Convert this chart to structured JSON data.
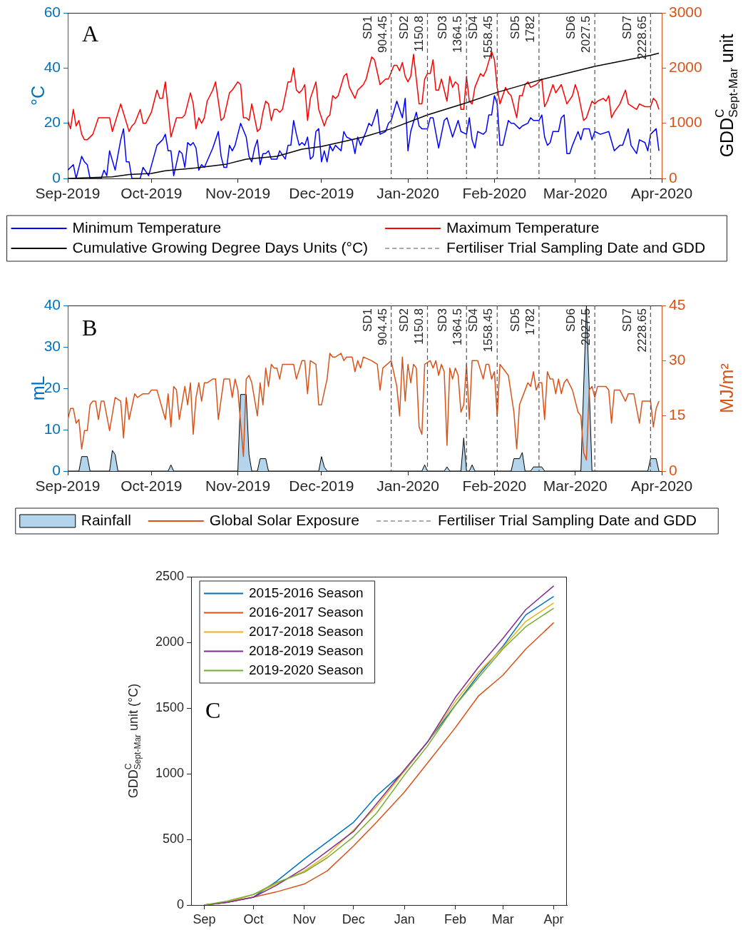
{
  "chart_data": [
    {
      "type": "line",
      "title": "A",
      "ylabel": "°C",
      "y2label": "GDD$^{C}$$_{Sept-Mar}$ unit",
      "xlim": [
        "2019-09-01",
        "2020-04-01"
      ],
      "xticks": [
        {
          "value": "2019-09-01",
          "label": "Sep-2019"
        },
        {
          "value": "2019-10-01",
          "label": "Oct-2019"
        },
        {
          "value": "2019-11-01",
          "label": "Nov-2019"
        },
        {
          "value": "2019-12-01",
          "label": "Dec-2019"
        },
        {
          "value": "2020-01-01",
          "label": "Jan-2020"
        },
        {
          "value": "2020-02-01",
          "label": "Feb-2020"
        },
        {
          "value": "2020-03-01",
          "label": "Mar-2020"
        },
        {
          "value": "2020-04-01",
          "label": "Apr-2020"
        }
      ],
      "ylim": [
        0,
        60
      ],
      "yticks": [
        0,
        20,
        40,
        60
      ],
      "y2lim": [
        0,
        3000
      ],
      "y2ticks": [
        0,
        1000,
        2000,
        3000
      ],
      "legend": "bottom",
      "marker": "none",
      "series": [
        {
          "name": "Minimum Temperature",
          "color": "#0000ff",
          "x": [
            "2019-09-01",
            "2019-09-03",
            "2019-09-04",
            "2019-09-06",
            "2019-09-07",
            "2019-09-08",
            "2019-09-09",
            "2019-09-13",
            "2019-09-14",
            "2019-09-15",
            "2019-09-16",
            "2019-09-18",
            "2019-09-20",
            "2019-09-21",
            "2019-09-22",
            "2019-09-23",
            "2019-09-24",
            "2019-09-27",
            "2019-09-28",
            "2019-09-30",
            "2019-10-03",
            "2019-10-05",
            "2019-10-06",
            "2019-10-07",
            "2019-10-08",
            "2019-10-09",
            "2019-10-11",
            "2019-10-12",
            "2019-10-13",
            "2019-10-14",
            "2019-10-15",
            "2019-10-16",
            "2019-10-17",
            "2019-10-18",
            "2019-10-19",
            "2019-10-20",
            "2019-10-23",
            "2019-10-25",
            "2019-10-26",
            "2019-10-27",
            "2019-10-28",
            "2019-10-29",
            "2019-10-30",
            "2019-10-31",
            "2019-11-02",
            "2019-11-04",
            "2019-11-05",
            "2019-11-06",
            "2019-11-07",
            "2019-11-08",
            "2019-11-09",
            "2019-11-10",
            "2019-11-11",
            "2019-11-12",
            "2019-11-13",
            "2019-11-15",
            "2019-11-16",
            "2019-11-18",
            "2019-11-19",
            "2019-11-20",
            "2019-11-21",
            "2019-11-22",
            "2019-11-23",
            "2019-11-24",
            "2019-11-25",
            "2019-11-26",
            "2019-11-27",
            "2019-11-28",
            "2019-11-29",
            "2019-11-30",
            "2019-12-01",
            "2019-12-02",
            "2019-12-03",
            "2019-12-04",
            "2019-12-05",
            "2019-12-06",
            "2019-12-08",
            "2019-12-09",
            "2019-12-10",
            "2019-12-12",
            "2019-12-13",
            "2019-12-14",
            "2019-12-15",
            "2019-12-17",
            "2019-12-18",
            "2019-12-19",
            "2019-12-21",
            "2019-12-22",
            "2019-12-24",
            "2019-12-25",
            "2019-12-26",
            "2019-12-28",
            "2019-12-30",
            "2019-12-31",
            "2020-01-01",
            "2020-01-02",
            "2020-01-04",
            "2020-01-05",
            "2020-01-06",
            "2020-01-08",
            "2020-01-09",
            "2020-01-10",
            "2020-01-12",
            "2020-01-14",
            "2020-01-15",
            "2020-01-17",
            "2020-01-19",
            "2020-01-20",
            "2020-01-22",
            "2020-01-23",
            "2020-01-24",
            "2020-01-25",
            "2020-01-26",
            "2020-01-28",
            "2020-01-29",
            "2020-01-30",
            "2020-01-31",
            "2020-02-01",
            "2020-02-02",
            "2020-02-03",
            "2020-02-04",
            "2020-02-06",
            "2020-02-07",
            "2020-02-08",
            "2020-02-10",
            "2020-02-11",
            "2020-02-13",
            "2020-02-14",
            "2020-02-15",
            "2020-02-17",
            "2020-02-18",
            "2020-02-19",
            "2020-02-20",
            "2020-02-21",
            "2020-02-22",
            "2020-02-24",
            "2020-02-25",
            "2020-02-26",
            "2020-02-27",
            "2020-02-28",
            "2020-02-29",
            "2020-03-02",
            "2020-03-03",
            "2020-03-04",
            "2020-03-06",
            "2020-03-07",
            "2020-03-08",
            "2020-03-10",
            "2020-03-13",
            "2020-03-15",
            "2020-03-17",
            "2020-03-18",
            "2020-03-20",
            "2020-03-21",
            "2020-03-23",
            "2020-03-24",
            "2020-03-26",
            "2020-03-27",
            "2020-03-28",
            "2020-03-30",
            "2020-03-31"
          ],
          "values": [
            3,
            5,
            0,
            8,
            6,
            5,
            0,
            0,
            3,
            1,
            10,
            3,
            14,
            18,
            6,
            6,
            0,
            0,
            4,
            1,
            12,
            14,
            16,
            10,
            10,
            1,
            10,
            9,
            4,
            13,
            12,
            13,
            11,
            3,
            5,
            4,
            11,
            17,
            8,
            4,
            4,
            12,
            10,
            12,
            20,
            15,
            8,
            6,
            11,
            14,
            5,
            9,
            9,
            10,
            7,
            7,
            10,
            7,
            12,
            12,
            21,
            16,
            12,
            13,
            12,
            15,
            7,
            8,
            17,
            18,
            6,
            10,
            6,
            12,
            10,
            12,
            10,
            17,
            15,
            14,
            9,
            15,
            12,
            17,
            20,
            19,
            25,
            16,
            17,
            20,
            21,
            28,
            22,
            29,
            10,
            17,
            24,
            19,
            18,
            18,
            22,
            22,
            11,
            21,
            22,
            15,
            21,
            17,
            16,
            22,
            14,
            11,
            17,
            16,
            17,
            23,
            23,
            30,
            27,
            12,
            12,
            21,
            20,
            20,
            18,
            19,
            20,
            22,
            21,
            21,
            23,
            15,
            12,
            13,
            17,
            17,
            22,
            23,
            9,
            9,
            12,
            17,
            14,
            18,
            18,
            14,
            17,
            16,
            17,
            10,
            12,
            12,
            18,
            12,
            9,
            14,
            13,
            10,
            16,
            18,
            10
          ]
        },
        {
          "name": "Maximum Temperature",
          "color": "#ff0000",
          "x": [
            "2019-09-01",
            "2019-09-02",
            "2019-09-03",
            "2019-09-04",
            "2019-09-05",
            "2019-09-06",
            "2019-09-07",
            "2019-09-08",
            "2019-09-10",
            "2019-09-12",
            "2019-09-13",
            "2019-09-15",
            "2019-09-16",
            "2019-09-17",
            "2019-09-20",
            "2019-09-23",
            "2019-09-24",
            "2019-09-25",
            "2019-09-27",
            "2019-09-28",
            "2019-09-29",
            "2019-10-01",
            "2019-10-03",
            "2019-10-04",
            "2019-10-05",
            "2019-10-06",
            "2019-10-08",
            "2019-10-10",
            "2019-10-12",
            "2019-10-13",
            "2019-10-15",
            "2019-10-16",
            "2019-10-17",
            "2019-10-18",
            "2019-10-19",
            "2019-10-20",
            "2019-10-21",
            "2019-10-23",
            "2019-10-24",
            "2019-10-26",
            "2019-10-27",
            "2019-10-29",
            "2019-10-30",
            "2019-11-01",
            "2019-11-02",
            "2019-11-03",
            "2019-11-04",
            "2019-11-05",
            "2019-11-06",
            "2019-11-08",
            "2019-11-09",
            "2019-11-10",
            "2019-11-11",
            "2019-11-12",
            "2019-11-13",
            "2019-11-14",
            "2019-11-15",
            "2019-11-16",
            "2019-11-17",
            "2019-11-19",
            "2019-11-20",
            "2019-11-21",
            "2019-11-22",
            "2019-11-23",
            "2019-11-24",
            "2019-11-25",
            "2019-11-26",
            "2019-11-27",
            "2019-11-29",
            "2019-11-30",
            "2019-12-02",
            "2019-12-03",
            "2019-12-04",
            "2019-12-05",
            "2019-12-06",
            "2019-12-07",
            "2019-12-09",
            "2019-12-10",
            "2019-12-11",
            "2019-12-13",
            "2019-12-14",
            "2019-12-16",
            "2019-12-17",
            "2019-12-19",
            "2019-12-20",
            "2019-12-22",
            "2019-12-24",
            "2019-12-25",
            "2019-12-27",
            "2019-12-28",
            "2019-12-29",
            "2019-12-30",
            "2019-12-31",
            "2020-01-01",
            "2020-01-02",
            "2020-01-03",
            "2020-01-05",
            "2020-01-06",
            "2020-01-07",
            "2020-01-08",
            "2020-01-09",
            "2020-01-10",
            "2020-01-11",
            "2020-01-12",
            "2020-01-13",
            "2020-01-15",
            "2020-01-16",
            "2020-01-17",
            "2020-01-18",
            "2020-01-19",
            "2020-01-20",
            "2020-01-21",
            "2020-01-22",
            "2020-01-23",
            "2020-01-24",
            "2020-01-25",
            "2020-01-27",
            "2020-01-28",
            "2020-01-29",
            "2020-01-31",
            "2020-02-01",
            "2020-02-02",
            "2020-02-03",
            "2020-02-04",
            "2020-02-05",
            "2020-02-06",
            "2020-02-07",
            "2020-02-09",
            "2020-02-10",
            "2020-02-11",
            "2020-02-12",
            "2020-02-13",
            "2020-02-14",
            "2020-02-16",
            "2020-02-18",
            "2020-02-19",
            "2020-02-20",
            "2020-02-22",
            "2020-02-23",
            "2020-02-25",
            "2020-02-27",
            "2020-02-29",
            "2020-03-01",
            "2020-03-02",
            "2020-03-04",
            "2020-03-05",
            "2020-03-07",
            "2020-03-08",
            "2020-03-09",
            "2020-03-11",
            "2020-03-12",
            "2020-03-13",
            "2020-03-14",
            "2020-03-15",
            "2020-03-17",
            "2020-03-19",
            "2020-03-20",
            "2020-03-23",
            "2020-03-24",
            "2020-03-26",
            "2020-03-28",
            "2020-03-29",
            "2020-03-30",
            "2020-03-31"
          ],
          "values": [
            21,
            18,
            25,
            19,
            21,
            16,
            14,
            14,
            16,
            22,
            22,
            22,
            22,
            17,
            27,
            17,
            19,
            20,
            25,
            20,
            20,
            24,
            32,
            29,
            29,
            35,
            15,
            22,
            22,
            23,
            31,
            27,
            18,
            22,
            20,
            22,
            28,
            32,
            35,
            21,
            22,
            31,
            32,
            35,
            34,
            22,
            22,
            21,
            27,
            17,
            18,
            24,
            28,
            27,
            21,
            25,
            25,
            24,
            25,
            35,
            35,
            40,
            32,
            31,
            32,
            34,
            21,
            29,
            35,
            25,
            19,
            22,
            23,
            30,
            29,
            30,
            37,
            38,
            33,
            29,
            32,
            34,
            36,
            44,
            43,
            34,
            36,
            36,
            41,
            41,
            39,
            42,
            37,
            35,
            37,
            45,
            27,
            27,
            36,
            38,
            38,
            43,
            32,
            32,
            36,
            28,
            37,
            33,
            35,
            34,
            25,
            25,
            37,
            28,
            27,
            33,
            38,
            37,
            39,
            46,
            43,
            33,
            27,
            30,
            33,
            31,
            30,
            22,
            30,
            30,
            34,
            35,
            33,
            34,
            36,
            26,
            28,
            34,
            31,
            34,
            27,
            30,
            34,
            31,
            21,
            22,
            28,
            27,
            28,
            29,
            28,
            30,
            22,
            24,
            27,
            32,
            27,
            25,
            27,
            26,
            26,
            29,
            28,
            25
          ]
        },
        {
          "name": "Cumulative Growing Degree Days Units (°C)",
          "color": "#000000",
          "axis": "y2",
          "x": [
            "2019-09-01",
            "2019-09-17",
            "2019-09-23",
            "2019-10-01",
            "2019-10-06",
            "2019-10-17",
            "2019-10-28",
            "2019-11-04",
            "2019-11-15",
            "2019-11-24",
            "2019-12-01",
            "2019-12-09",
            "2019-12-16",
            "2019-12-26",
            "2020-01-08",
            "2020-01-22",
            "2020-02-02",
            "2020-02-17",
            "2020-03-08",
            "2020-03-28",
            "2020-03-31"
          ],
          "values": [
            0,
            30,
            70,
            90,
            140,
            190,
            260,
            350,
            400,
            530,
            580,
            670,
            750,
            900,
            1150,
            1370,
            1560,
            1780,
            2030,
            2230,
            2270
          ]
        }
      ],
      "ref_lines": [
        {
          "axis": "x",
          "value": "2019-12-26",
          "label": "SD1\n904.45",
          "color": "#555555",
          "line_style": "dashed"
        },
        {
          "axis": "x",
          "value": "2020-01-08",
          "label": "SD2\n1150.8",
          "color": "#555555",
          "line_style": "dashed"
        },
        {
          "axis": "x",
          "value": "2020-01-22",
          "label": "SD3\n1364.5",
          "color": "#555555",
          "line_style": "dashed"
        },
        {
          "axis": "x",
          "value": "2020-02-02",
          "label": "SD4\n1558.45",
          "color": "#555555",
          "line_style": "dashed"
        },
        {
          "axis": "x",
          "value": "2020-02-17",
          "label": "SD5\n1782",
          "color": "#555555",
          "line_style": "dashed"
        },
        {
          "axis": "x",
          "value": "2020-03-08",
          "label": "SD6\n2027.5",
          "color": "#555555",
          "line_style": "dashed"
        },
        {
          "axis": "x",
          "value": "2020-03-28",
          "label": "SD7\n2228.65",
          "color": "#555555",
          "line_style": "dashed"
        }
      ],
      "annotations": [
        "Fertiliser Trial Sampling Date and GDD"
      ]
    },
    {
      "type": "line",
      "title": "B",
      "ylabel": "mL",
      "y2label": "MJ/m²",
      "xlim": [
        "2019-09-01",
        "2020-04-01"
      ],
      "xticks": [
        {
          "value": "2019-09-01",
          "label": "Sep-2019"
        },
        {
          "value": "2019-10-01",
          "label": "Oct-2019"
        },
        {
          "value": "2019-11-01",
          "label": "Nov-2019"
        },
        {
          "value": "2019-12-01",
          "label": "Dec-2019"
        },
        {
          "value": "2020-01-01",
          "label": "Jan-2020"
        },
        {
          "value": "2020-02-01",
          "label": "Feb-2020"
        },
        {
          "value": "2020-03-01",
          "label": "Mar-2020"
        },
        {
          "value": "2020-04-01",
          "label": "Apr-2020"
        }
      ],
      "ylim": [
        0,
        40
      ],
      "yticks": [
        0,
        10,
        20,
        30,
        40
      ],
      "y2lim": [
        0,
        45
      ],
      "y2ticks": [
        0,
        15,
        30,
        45
      ],
      "legend": "bottom",
      "marker": "none",
      "series": [
        {
          "name": "Rainfall",
          "type": "area",
          "color": "#b3d4ea",
          "x": [
            "2019-09-01",
            "2019-09-05",
            "2019-09-06",
            "2019-09-08",
            "2019-09-09",
            "2019-09-16",
            "2019-09-17",
            "2019-09-18",
            "2019-09-19",
            "2019-10-07",
            "2019-10-08",
            "2019-10-09",
            "2019-11-01",
            "2019-11-02",
            "2019-11-04",
            "2019-11-05",
            "2019-11-06",
            "2019-11-08",
            "2019-11-09",
            "2019-11-11",
            "2019-11-12",
            "2019-11-30",
            "2019-12-01",
            "2019-12-02",
            "2019-12-03",
            "2020-01-06",
            "2020-01-07",
            "2020-01-08",
            "2020-01-14",
            "2020-01-15",
            "2020-01-16",
            "2020-01-20",
            "2020-01-21",
            "2020-01-22",
            "2020-01-23",
            "2020-01-24",
            "2020-01-25",
            "2020-02-07",
            "2020-02-08",
            "2020-02-10",
            "2020-02-11",
            "2020-02-12",
            "2020-02-14",
            "2020-02-15",
            "2020-02-18",
            "2020-02-19",
            "2020-03-03",
            "2020-03-05",
            "2020-03-07",
            "2020-03-27",
            "2020-03-28",
            "2020-03-30",
            "2020-03-31"
          ],
          "values": [
            0,
            0,
            3.5,
            3.5,
            0,
            0,
            5,
            4,
            0,
            0,
            1.5,
            0,
            0,
            18.5,
            18.5,
            4,
            0,
            0,
            3,
            3,
            0,
            0,
            3.5,
            1,
            0,
            0,
            1.5,
            0,
            0,
            1,
            0,
            0,
            8,
            0,
            0,
            1.5,
            0,
            0,
            3,
            3,
            4.5,
            0,
            0,
            1,
            1,
            0,
            0,
            40,
            0,
            0,
            3,
            3,
            0
          ]
        },
        {
          "name": "Global Solar Exposure",
          "color": "#d95319",
          "axis": "y2",
          "x": [
            "2019-09-01",
            "2019-09-02",
            "2019-09-03",
            "2019-09-04",
            "2019-09-05",
            "2019-09-06",
            "2019-09-07",
            "2019-09-08",
            "2019-09-09",
            "2019-09-10",
            "2019-09-11",
            "2019-09-12",
            "2019-09-13",
            "2019-09-14",
            "2019-09-16",
            "2019-09-18",
            "2019-09-20",
            "2019-09-21",
            "2019-09-22",
            "2019-09-23",
            "2019-09-25",
            "2019-09-26",
            "2019-09-28",
            "2019-09-30",
            "2019-10-01",
            "2019-10-03",
            "2019-10-06",
            "2019-10-07",
            "2019-10-08",
            "2019-10-09",
            "2019-10-10",
            "2019-10-11",
            "2019-10-13",
            "2019-10-14",
            "2019-10-15",
            "2019-10-16",
            "2019-10-17",
            "2019-10-18",
            "2019-10-19",
            "2019-10-20",
            "2019-10-21",
            "2019-10-23",
            "2019-10-24",
            "2019-10-25",
            "2019-10-27",
            "2019-10-29",
            "2019-10-30",
            "2019-10-31",
            "2019-11-01",
            "2019-11-03",
            "2019-11-04",
            "2019-11-05",
            "2019-11-06",
            "2019-11-08",
            "2019-11-09",
            "2019-11-10",
            "2019-11-11",
            "2019-11-12",
            "2019-11-13",
            "2019-11-14",
            "2019-11-15",
            "2019-11-16",
            "2019-11-17",
            "2019-11-19",
            "2019-11-21",
            "2019-11-22",
            "2019-11-24",
            "2019-11-25",
            "2019-11-26",
            "2019-11-27",
            "2019-11-29",
            "2019-11-30",
            "2019-12-01",
            "2019-12-03",
            "2019-12-04",
            "2019-12-05",
            "2019-12-06",
            "2019-12-08",
            "2019-12-09",
            "2019-12-10",
            "2019-12-12",
            "2019-12-13",
            "2019-12-14",
            "2019-12-15",
            "2019-12-16",
            "2019-12-19",
            "2019-12-21",
            "2019-12-22",
            "2019-12-23",
            "2019-12-26",
            "2019-12-28",
            "2019-12-29",
            "2019-12-30",
            "2019-12-31",
            "2020-01-01",
            "2020-01-02",
            "2020-01-03",
            "2020-01-04",
            "2020-01-05",
            "2020-01-06",
            "2020-01-07",
            "2020-01-09",
            "2020-01-10",
            "2020-01-11",
            "2020-01-12",
            "2020-01-13",
            "2020-01-14",
            "2020-01-15",
            "2020-01-16",
            "2020-01-17",
            "2020-01-18",
            "2020-01-19",
            "2020-01-20",
            "2020-01-21",
            "2020-01-22",
            "2020-01-23",
            "2020-01-24",
            "2020-01-26",
            "2020-01-28",
            "2020-01-29",
            "2020-01-30",
            "2020-01-31",
            "2020-02-01",
            "2020-02-02",
            "2020-02-03",
            "2020-02-06",
            "2020-02-08",
            "2020-02-09",
            "2020-02-10",
            "2020-02-11",
            "2020-02-13",
            "2020-02-14",
            "2020-02-15",
            "2020-02-16",
            "2020-02-17",
            "2020-02-18",
            "2020-02-19",
            "2020-02-20",
            "2020-02-21",
            "2020-02-22",
            "2020-02-23",
            "2020-02-24",
            "2020-02-25",
            "2020-02-26",
            "2020-02-27",
            "2020-02-29",
            "2020-03-02",
            "2020-03-03",
            "2020-03-04",
            "2020-03-05",
            "2020-03-06",
            "2020-03-07",
            "2020-03-08",
            "2020-03-09",
            "2020-03-12",
            "2020-03-13",
            "2020-03-14",
            "2020-03-15",
            "2020-03-17",
            "2020-03-19",
            "2020-03-20",
            "2020-03-22",
            "2020-03-24",
            "2020-03-25",
            "2020-03-26",
            "2020-03-28",
            "2020-03-29",
            "2020-03-30",
            "2020-03-31"
          ],
          "values": [
            14,
            17,
            17,
            13,
            14,
            6,
            11,
            11,
            18,
            19,
            19,
            14,
            19,
            19,
            11,
            20,
            19,
            9,
            20,
            14,
            21,
            20,
            21,
            21,
            22,
            22,
            14,
            21,
            12,
            23,
            22,
            14,
            23,
            18,
            24,
            10,
            20,
            24,
            19,
            24,
            24,
            25,
            25,
            14,
            25,
            25,
            20,
            25,
            22,
            4,
            25,
            26,
            24,
            15,
            24,
            18,
            28,
            23,
            29,
            28,
            28,
            25,
            29,
            29,
            29,
            25,
            30,
            30,
            21,
            30,
            29,
            18,
            18,
            25,
            32,
            31,
            31,
            32,
            30,
            31,
            31,
            27,
            30,
            28,
            31,
            30,
            29,
            22,
            28,
            30,
            23,
            15,
            31,
            19,
            29,
            24,
            29,
            28,
            12,
            10,
            29,
            30,
            28,
            30,
            26,
            29,
            27,
            7,
            28,
            25,
            28,
            26,
            16,
            18,
            29,
            14,
            30,
            30,
            25,
            29,
            29,
            25,
            27,
            15,
            29,
            26,
            16,
            6,
            18,
            20,
            24,
            23,
            27,
            22,
            24,
            24,
            14,
            27,
            25,
            25,
            21,
            25,
            21,
            24,
            25,
            22,
            16,
            15,
            5,
            3,
            22,
            23,
            20,
            23,
            23,
            22,
            13,
            22,
            22,
            19,
            21,
            21,
            13,
            19,
            19,
            19,
            12,
            17,
            19
          ]
        }
      ],
      "ref_lines": [
        {
          "axis": "x",
          "value": "2019-12-26",
          "label": "SD1\n904.45",
          "color": "#555555",
          "line_style": "dashed"
        },
        {
          "axis": "x",
          "value": "2020-01-08",
          "label": "SD2\n1150.8",
          "color": "#555555",
          "line_style": "dashed"
        },
        {
          "axis": "x",
          "value": "2020-01-22",
          "label": "SD3\n1364.5",
          "color": "#555555",
          "line_style": "dashed"
        },
        {
          "axis": "x",
          "value": "2020-02-02",
          "label": "SD4\n1558.45",
          "color": "#555555",
          "line_style": "dashed"
        },
        {
          "axis": "x",
          "value": "2020-02-17",
          "label": "SD5\n1782",
          "color": "#555555",
          "line_style": "dashed"
        },
        {
          "axis": "x",
          "value": "2020-03-08",
          "label": "SD6\n2027.5",
          "color": "#555555",
          "line_style": "dashed"
        },
        {
          "axis": "x",
          "value": "2020-03-28",
          "label": "SD7\n2228.65",
          "color": "#555555",
          "line_style": "dashed"
        }
      ],
      "annotations": [
        "Fertiliser Trial Sampling Date and GDD"
      ]
    },
    {
      "type": "line",
      "title": "C",
      "ylabel": "GDD$^{C}$$_{Sept-Mar}$ unit (°C)",
      "xlim": [
        "2019-08-24",
        "2020-04-09"
      ],
      "xticks": [
        {
          "value": "2019-09-01",
          "label": "Sep"
        },
        {
          "value": "2019-10-01",
          "label": "Oct"
        },
        {
          "value": "2019-11-01",
          "label": "Nov"
        },
        {
          "value": "2019-12-01",
          "label": "Dec"
        },
        {
          "value": "2020-01-01",
          "label": "Jan"
        },
        {
          "value": "2020-02-01",
          "label": "Feb"
        },
        {
          "value": "2020-03-01",
          "label": "Mar"
        },
        {
          "value": "2020-04-01",
          "label": "Apr"
        }
      ],
      "ylim": [
        0,
        2500
      ],
      "yticks": [
        0,
        500,
        1000,
        1500,
        2000,
        2500
      ],
      "legend": "top left",
      "marker": "none",
      "x": [
        "2019-09-01",
        "2019-09-15",
        "2019-10-01",
        "2019-10-15",
        "2019-11-01",
        "2019-11-15",
        "2019-12-01",
        "2019-12-15",
        "2020-01-01",
        "2020-01-15",
        "2020-02-01",
        "2020-02-15",
        "2020-03-01",
        "2020-03-15",
        "2020-04-01"
      ],
      "series": [
        {
          "name": "2015-2016 Season",
          "color": "#0072bd",
          "values": [
            0,
            20,
            60,
            180,
            350,
            480,
            630,
            830,
            1020,
            1240,
            1520,
            1750,
            1970,
            2210,
            2350
          ]
        },
        {
          "name": "2016-2017 Season",
          "color": "#d95319",
          "values": [
            0,
            20,
            60,
            100,
            160,
            260,
            450,
            630,
            860,
            1080,
            1350,
            1590,
            1750,
            1950,
            2150
          ]
        },
        {
          "name": "2017-2018 Season",
          "color": "#edb120",
          "values": [
            0,
            20,
            80,
            160,
            260,
            380,
            570,
            750,
            1020,
            1240,
            1550,
            1770,
            1960,
            2160,
            2300
          ]
        },
        {
          "name": "2018-2019 Season",
          "color": "#7e2f8e",
          "values": [
            0,
            20,
            60,
            150,
            280,
            410,
            560,
            770,
            1030,
            1240,
            1580,
            1810,
            2030,
            2250,
            2430
          ]
        },
        {
          "name": "2019-2020 Season",
          "color": "#77ac30",
          "values": [
            0,
            30,
            80,
            170,
            250,
            360,
            520,
            700,
            990,
            1210,
            1520,
            1730,
            1950,
            2120,
            2260
          ]
        }
      ]
    }
  ]
}
